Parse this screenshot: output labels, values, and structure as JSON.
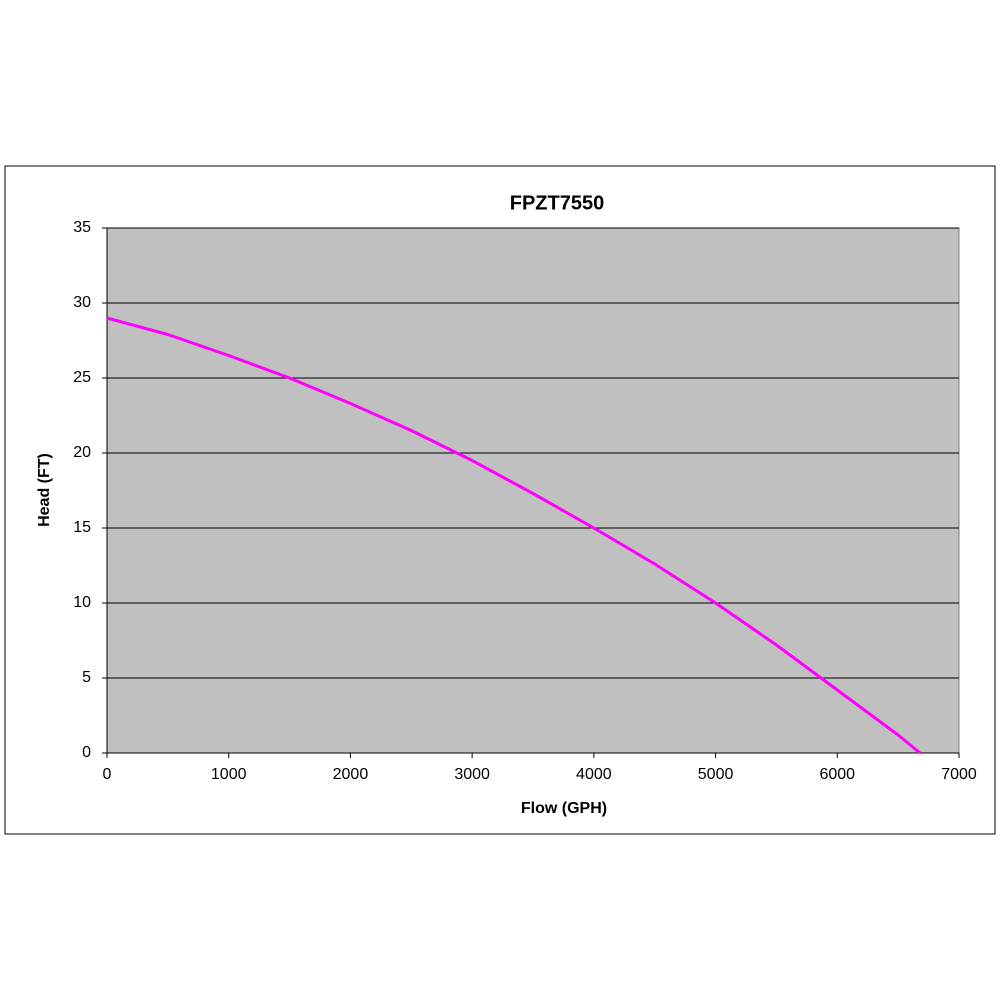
{
  "chart_data": {
    "type": "line",
    "title": "FPZT7550",
    "x_label": "Flow (GPH)",
    "y_label": "Head (FT)",
    "x": [
      0,
      500,
      1000,
      1500,
      2000,
      2500,
      3000,
      3500,
      4000,
      4500,
      5000,
      5500,
      6000,
      6500,
      6680
    ],
    "series": [
      {
        "name": "FPZT7550",
        "color": "#ff00ff",
        "values": [
          29,
          27.9,
          26.5,
          25,
          23.3,
          21.5,
          19.5,
          17.3,
          15,
          12.6,
          10,
          7.2,
          4.2,
          1.2,
          0
        ]
      }
    ],
    "xlim": [
      0,
      7000
    ],
    "xticks": [
      0,
      1000,
      2000,
      3000,
      4000,
      5000,
      6000,
      7000
    ],
    "ylim": [
      0,
      35
    ],
    "yticks": [
      0,
      5,
      10,
      15,
      20,
      25,
      30,
      35
    ],
    "grid": true,
    "legend": false
  }
}
